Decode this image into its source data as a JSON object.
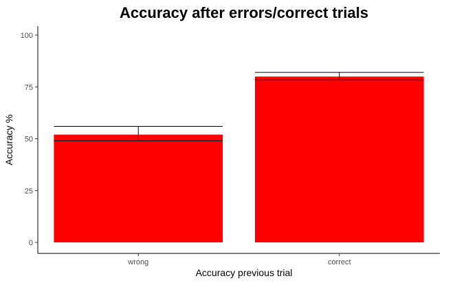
{
  "chart_data": {
    "type": "bar",
    "title": "Accuracy after errors/correct trials",
    "xlabel": "Accuracy previous trial",
    "ylabel": "Accuracy %",
    "categories": [
      "wrong",
      "correct"
    ],
    "values": [
      52,
      80
    ],
    "error_bars": [
      {
        "lower": 49,
        "upper": 56
      },
      {
        "lower": 78.5,
        "upper": 82
      }
    ],
    "ylim": [
      0,
      100
    ],
    "yticks": [
      0,
      25,
      50,
      75,
      100
    ],
    "ytick_labels": [
      "0",
      "25",
      "50",
      "75",
      "100"
    ],
    "bar_color": "#ff0000",
    "grid": false,
    "legend": "none"
  }
}
